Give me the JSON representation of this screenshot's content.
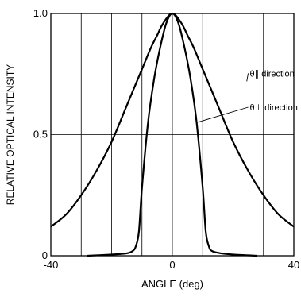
{
  "chart_data": {
    "type": "line",
    "title": "",
    "xlabel": "ANGLE (deg)",
    "ylabel": "RELATIVE OPTICAL INTENSITY",
    "xlim": [
      -40,
      40
    ],
    "ylim": [
      0,
      1.0
    ],
    "x_tick_labels": [
      {
        "value": -40,
        "label": "-40"
      },
      {
        "value": 0,
        "label": "0"
      },
      {
        "value": 40,
        "label": "40"
      }
    ],
    "y_tick_labels": [
      {
        "value": 0,
        "label": "0"
      },
      {
        "value": 0.5,
        "label": "0.5"
      },
      {
        "value": 1.0,
        "label": "1.0"
      }
    ],
    "x_gridlines": [
      -30,
      -20,
      -10,
      0,
      10,
      20,
      30
    ],
    "y_gridlines": [
      0.5
    ],
    "grid": true,
    "legend": "annotations",
    "series": [
      {
        "name": "θ∥ direction",
        "x": [
          -40,
          -35,
          -30,
          -25,
          -20,
          -15,
          -10,
          -7,
          -5,
          -3,
          0,
          3,
          5,
          7,
          10,
          15,
          20,
          25,
          30,
          35,
          40
        ],
        "y": [
          0.12,
          0.17,
          0.25,
          0.35,
          0.47,
          0.62,
          0.77,
          0.86,
          0.91,
          0.96,
          1.0,
          0.96,
          0.91,
          0.86,
          0.77,
          0.62,
          0.47,
          0.35,
          0.25,
          0.17,
          0.12
        ]
      },
      {
        "name": "θ⊥ direction",
        "x": [
          -28,
          -20,
          -15,
          -13,
          -12,
          -11,
          -10,
          -8,
          -6,
          -4,
          -2,
          0,
          2,
          4,
          6,
          8,
          10,
          11,
          12,
          13,
          16,
          20,
          28
        ],
        "y": [
          0.0,
          0.005,
          0.01,
          0.02,
          0.04,
          0.1,
          0.28,
          0.55,
          0.73,
          0.86,
          0.96,
          1.0,
          0.96,
          0.86,
          0.73,
          0.55,
          0.28,
          0.1,
          0.04,
          0.02,
          0.01,
          0.005,
          0.0
        ]
      }
    ],
    "annotations": [
      {
        "text": "θ∥ direction",
        "series_index": 0,
        "anchor_x": 24.5,
        "anchor_y": 0.72,
        "label_x": 25.5,
        "label_y": 0.74
      },
      {
        "text": "θ⊥ direction",
        "series_index": 1,
        "anchor_x": 8,
        "anchor_y": 0.55,
        "label_x": 25.5,
        "label_y": 0.6
      }
    ]
  }
}
